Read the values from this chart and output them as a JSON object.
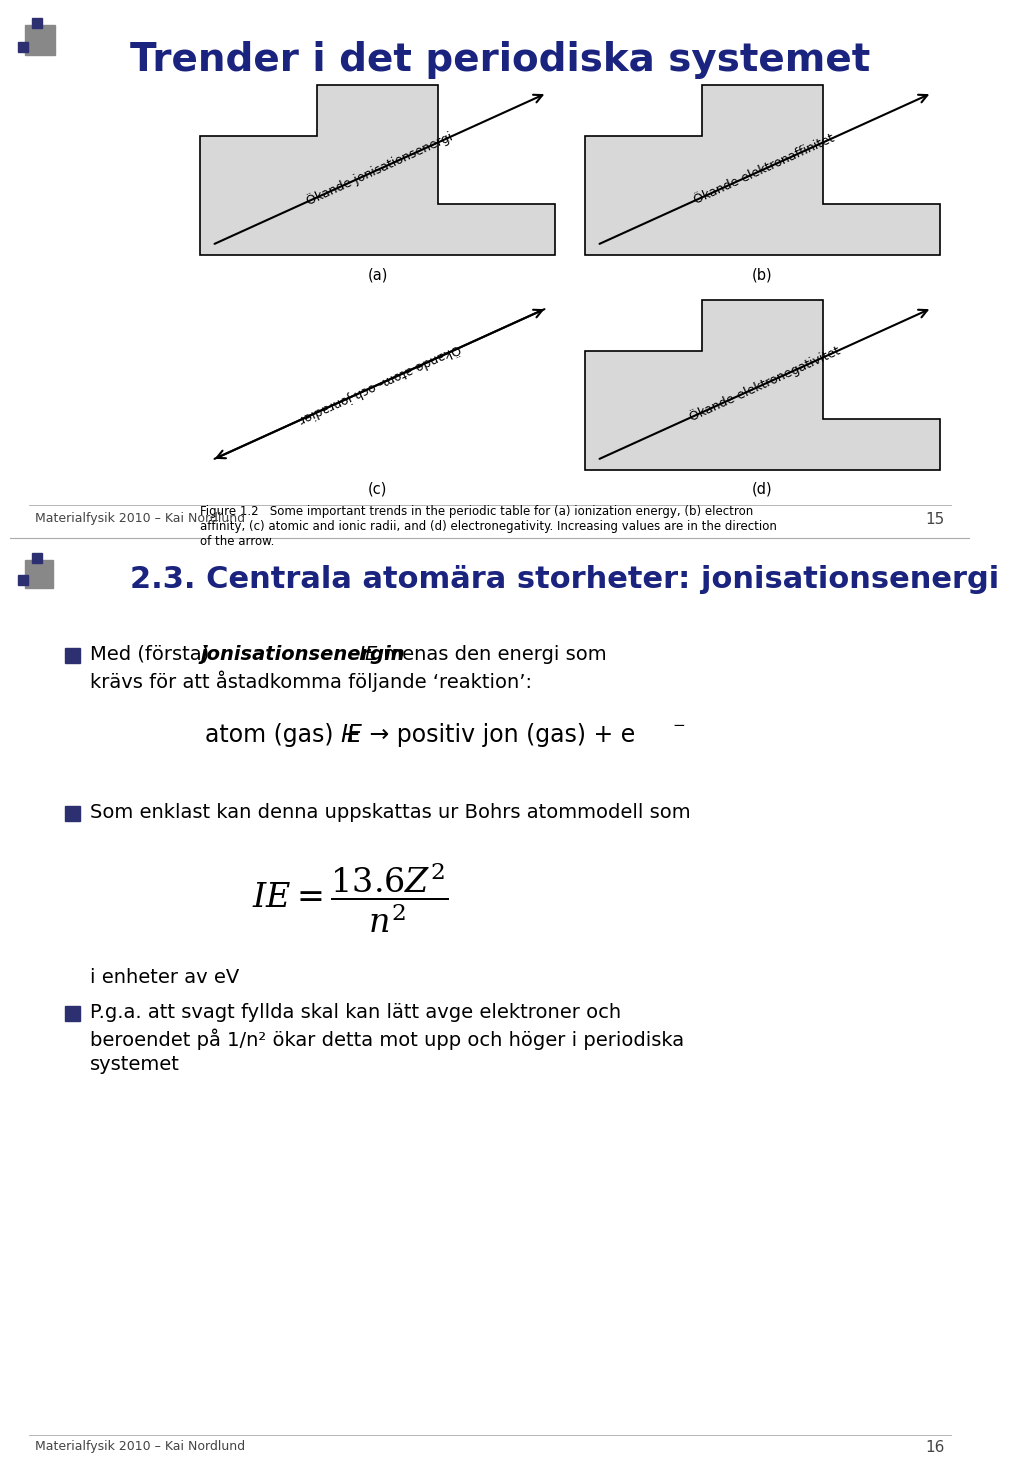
{
  "title_page1": "Trender i det periodiska systemet",
  "title_page2": "2.3. Centrala atomära storheter: jonisationsenergi",
  "title_color": "#1a237e",
  "bg_color": "#ffffff",
  "footer_text": "Materialfysik 2010 – Kai Nordlund",
  "page1_num": "15",
  "page2_num": "16",
  "diagram_labels": {
    "a": "Ökande jonisationsenergi",
    "b": "Ökande elektronaffinitet",
    "c": "Ökande atom- och jonradier",
    "d": "Ökande elektronegativitet"
  },
  "captions": {
    "a": "(a)",
    "b": "(b)",
    "c": "(c)",
    "d": "(d)"
  },
  "figure_caption": "Figure 1.2   Some important trends in the periodic table for (a) ionization energy, (b) electron\naffinity, (c) atomic and ionic radii, and (d) electronegativity. Increasing values are in the direction\nof the arrow.",
  "bullet_color": "#2c3070",
  "bullet2_text": "Som enklast kan denna uppskattas ur Bohrs atommodell som",
  "formula_note": "i enheter av eV",
  "bullet3_text": "P.g.a. att svagt fyllda skal kan lätt avge elektroner och\nberoendet på 1/n² ökar detta mot upp och höger i periodiska\nsystemet",
  "diagram_face_color": "#d8d8d8",
  "diagram_edge_color": "#000000",
  "arrow_color": "#000000"
}
